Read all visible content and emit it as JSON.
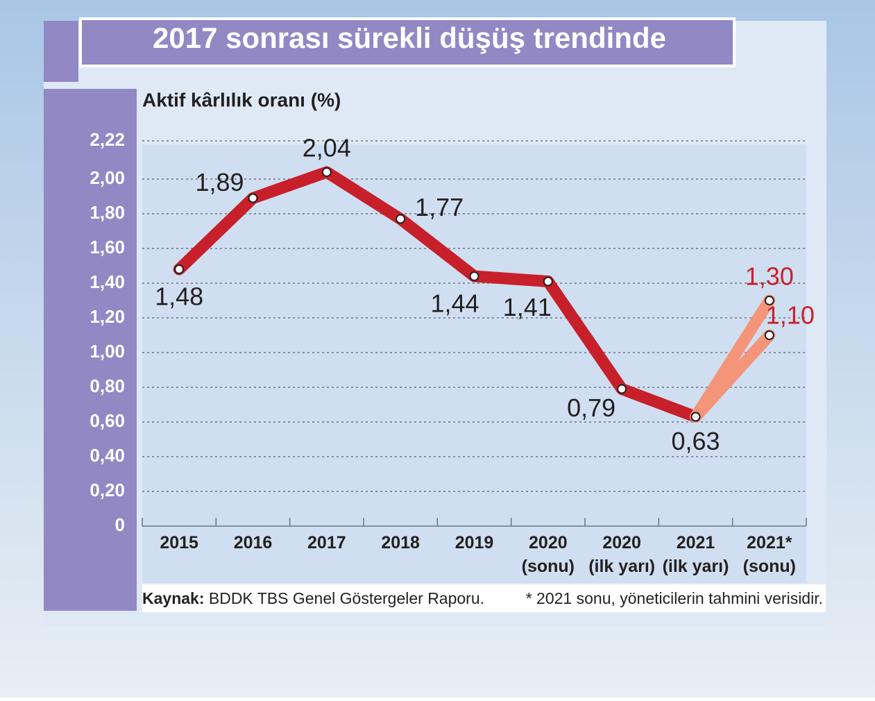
{
  "chart_data": {
    "type": "line",
    "title": "2017 sonrası sürekli düşüş trendinde",
    "y_label": "Aktif kârlılık oranı (%)",
    "source_label": "Kaynak:",
    "source": "BDDK TBS Genel Göstergeler Raporu.",
    "note": "* 2021 sonu, yöneticilerin tahmini verisidir.",
    "categories": [
      "2015",
      "2016",
      "2017",
      "2018",
      "2019",
      "2020\n(sonu)",
      "2020\n(ilk yarı)",
      "2021\n(ilk yarı)",
      "2021*\n(sonu)"
    ],
    "series": [
      {
        "color": "#c8202a",
        "label_color": "#231f20",
        "values": [
          1.48,
          1.89,
          2.04,
          1.77,
          1.44,
          1.41,
          0.79,
          0.63,
          null
        ],
        "value_labels": [
          "1,48",
          "1,89",
          "2,04",
          "1,77",
          "1,44",
          "1,41",
          "0,79",
          "0,63",
          null
        ]
      },
      {
        "color": "#f4957a",
        "label_color": "#c8202a",
        "values": [
          null,
          null,
          null,
          null,
          null,
          null,
          null,
          0.63,
          1.3
        ],
        "value_labels": [
          null,
          null,
          null,
          null,
          null,
          null,
          null,
          null,
          "1,30"
        ]
      },
      {
        "color": "#f4957a",
        "label_color": "#c8202a",
        "values": [
          null,
          null,
          null,
          null,
          null,
          null,
          null,
          0.63,
          1.1
        ],
        "value_labels": [
          null,
          null,
          null,
          null,
          null,
          null,
          null,
          null,
          "1,10"
        ]
      }
    ],
    "ylim": [
      0,
      2.22
    ],
    "yticks": [
      0,
      {
        "value": 0.2,
        "label": "0,20"
      },
      {
        "value": 0.4,
        "label": "0,40"
      },
      {
        "value": 0.6,
        "label": "0,60"
      },
      {
        "value": 0.8,
        "label": "0,80"
      },
      {
        "value": 1.0,
        "label": "1,00"
      },
      {
        "value": 1.2,
        "label": "1,20"
      },
      {
        "value": 1.4,
        "label": "1,40"
      },
      {
        "value": 1.6,
        "label": "1,60"
      },
      {
        "value": 1.8,
        "label": "1,80"
      },
      {
        "value": 2.0,
        "label": "2,00"
      },
      {
        "value": 2.22,
        "label": "2,22"
      }
    ],
    "grid": true
  }
}
